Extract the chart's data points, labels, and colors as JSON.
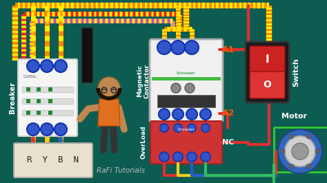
{
  "bg_color": "#0d5c52",
  "wire_colors": {
    "red": "#e03030",
    "yellow": "#f0d020",
    "blue": "#2060d0",
    "green": "#30c060",
    "stripe_orange": "#ff8800",
    "stripe_yellow": "#ffee00",
    "stripe_red": "#ee2222",
    "stripe_purple": "#cc44cc"
  },
  "labels": {
    "breaker": "Breaker",
    "magnetic_contactor": "Magnetic\nContactor",
    "overload": "OverLoad",
    "switch": "Switch",
    "motor": "Motor",
    "rybn": "R  Y  B  N",
    "rafi": "RaFi Tutorials",
    "A1": "A1",
    "A2": "A2",
    "NC": "NC"
  },
  "panel_bg": "#e8e2cc",
  "panel_border": "#aaaaaa",
  "breaker_bg": "#f5f5f5",
  "contactor_bg": "#f0f0f0",
  "overload_bg": "#cc3333"
}
